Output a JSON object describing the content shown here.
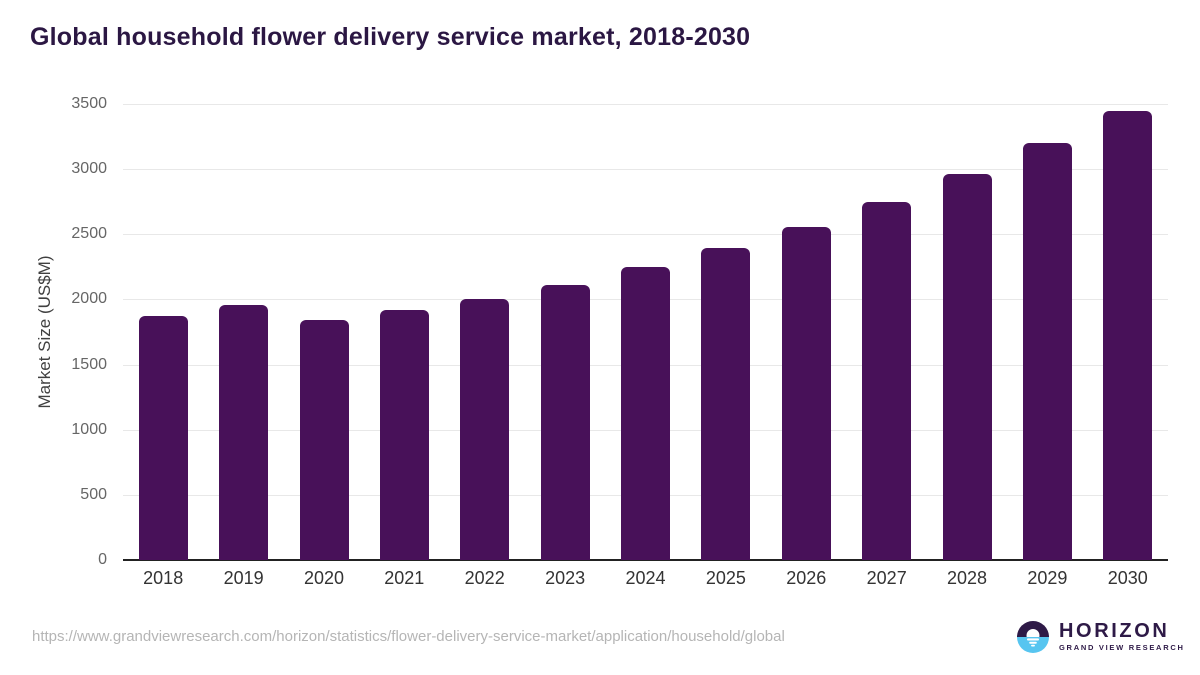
{
  "header": {
    "title": "Global household flower delivery service market, 2018-2030"
  },
  "chart_data": {
    "type": "bar",
    "title": "Global household flower delivery service market, 2018-2030",
    "categories": [
      "2018",
      "2019",
      "2020",
      "2021",
      "2022",
      "2023",
      "2024",
      "2025",
      "2026",
      "2027",
      "2028",
      "2029",
      "2030"
    ],
    "values": [
      1870,
      1957,
      1844,
      1920,
      2004,
      2112,
      2247,
      2392,
      2554,
      2747,
      2959,
      3199,
      3446
    ],
    "xlabel": "",
    "ylabel": "Market Size (US$M)",
    "ylim": [
      0,
      3500
    ],
    "yticks": [
      0,
      500,
      1000,
      1500,
      2000,
      2500,
      3000,
      3500
    ],
    "grid": true,
    "legend": "none",
    "bar_color": "#481159"
  },
  "colors": {
    "bar": "#481159",
    "title": "#2b1743",
    "axis_line": "#222222",
    "gridline": "#e8e8e8",
    "tick_label": "#666666",
    "category_label": "#333333",
    "url_text": "#b5b5b5",
    "logo_purple": "#2e1a47",
    "logo_blue": "#57c5f0"
  },
  "footer": {
    "source_url": "https://www.grandviewresearch.com/horizon/statistics/flower-delivery-service-market/application/household/global",
    "logo": {
      "name": "HORIZON",
      "subtitle": "GRAND VIEW RESEARCH"
    }
  }
}
